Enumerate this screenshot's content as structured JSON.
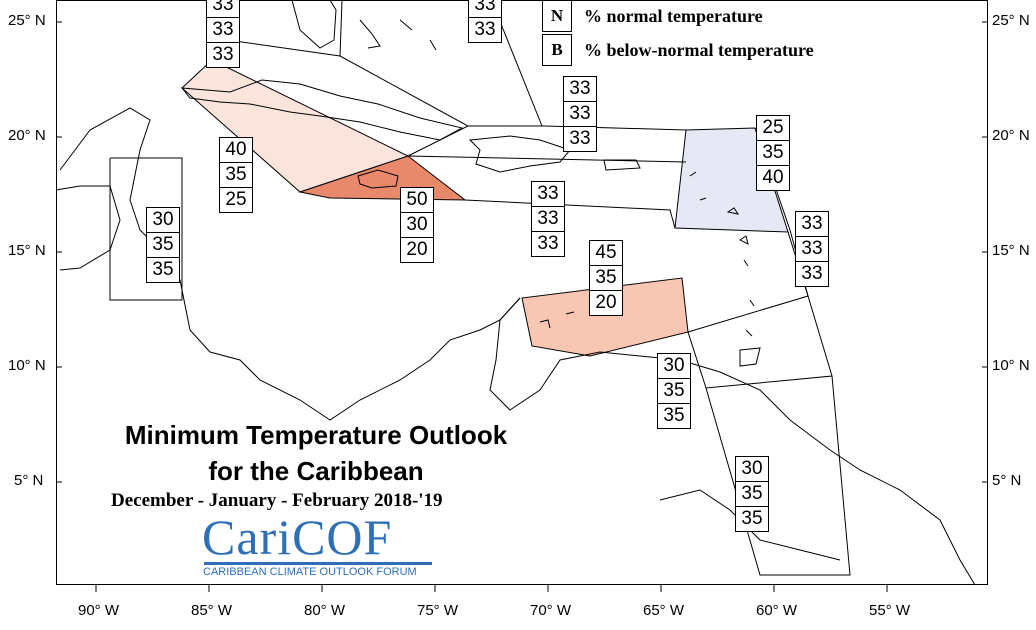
{
  "map": {
    "title_line1": "Minimum Temperature Outlook",
    "title_line2": "for the Caribbean",
    "subtitle": "December - January - February 2018-'19",
    "logo": {
      "name": "CariCOF",
      "tagline": "CARIBBEAN CLIMATE OUTLOOK FORUM",
      "color": "#2f6fb5"
    },
    "latitude_labels": [
      "25° N",
      "20° N",
      "15° N",
      "10° N",
      "5° N"
    ],
    "longitude_labels": [
      "90° W",
      "85° W",
      "80° W",
      "75° W",
      "70° W",
      "65° W",
      "60° W",
      "55° W"
    ],
    "legend": [
      {
        "key": "N",
        "label": "% normal temperature"
      },
      {
        "key": "B",
        "label": "% below-normal temperature"
      }
    ],
    "colors": {
      "above_light": "#fbe4dc",
      "above_medium": "#f7c7b4",
      "above_strong": "#e8896b",
      "below_light": "#e6e8f6"
    },
    "regions": [
      {
        "id": "bahamas-north",
        "above": "",
        "normal": "33",
        "below": "33"
      },
      {
        "id": "turks-caicos",
        "above": "",
        "normal": "33",
        "below": "33"
      },
      {
        "id": "hispaniola-north",
        "above": "33",
        "normal": "33",
        "below": "33"
      },
      {
        "id": "leeward-islands",
        "above": "25",
        "normal": "35",
        "below": "40"
      },
      {
        "id": "western-caribbean",
        "above": "40",
        "normal": "35",
        "below": "25"
      },
      {
        "id": "belize",
        "above": "30",
        "normal": "35",
        "below": "35"
      },
      {
        "id": "jamaica",
        "above": "50",
        "normal": "30",
        "below": "20"
      },
      {
        "id": "central-caribbean",
        "above": "33",
        "normal": "33",
        "below": "33"
      },
      {
        "id": "windward-islands",
        "above": "33",
        "normal": "33",
        "below": "33"
      },
      {
        "id": "abc-islands",
        "above": "45",
        "normal": "35",
        "below": "20"
      },
      {
        "id": "trinidad-tobago",
        "above": "30",
        "normal": "35",
        "below": "35"
      },
      {
        "id": "guianas",
        "above": "30",
        "normal": "35",
        "below": "35"
      }
    ]
  }
}
